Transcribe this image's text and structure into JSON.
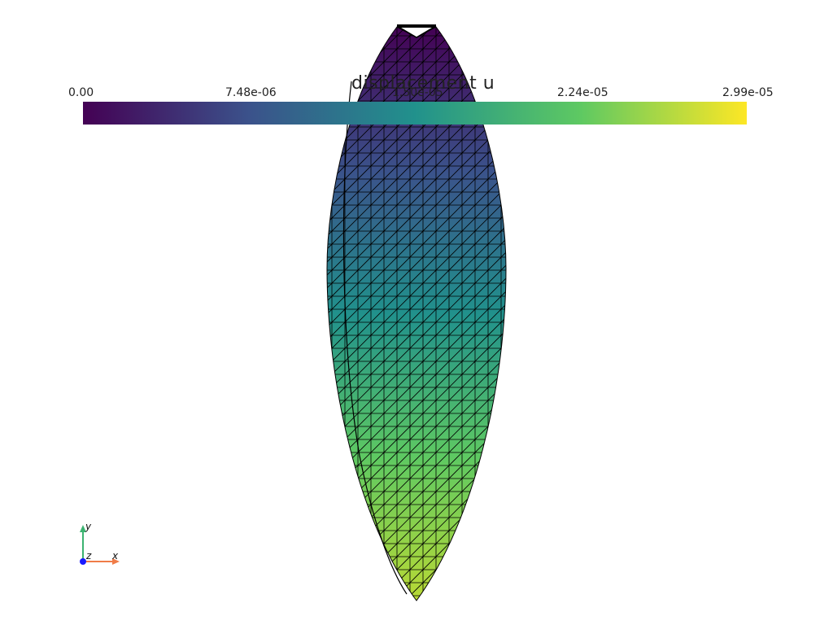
{
  "scalar_bar": {
    "title": "displacement u",
    "ticks": [
      "0.00",
      "7.48e-06",
      "1.50e-05",
      "2.24e-05",
      "2.99e-05"
    ],
    "colormap": [
      "#440154",
      "#3b528b",
      "#21918c",
      "#5ec962",
      "#fde725"
    ]
  },
  "orientation_axes": {
    "x_label": "x",
    "y_label": "y",
    "z_label": "z",
    "x_color": "#f07c48",
    "y_color": "#3cb371",
    "z_color": "#1a1aff"
  },
  "mesh": {
    "edge_color": "#000000"
  }
}
